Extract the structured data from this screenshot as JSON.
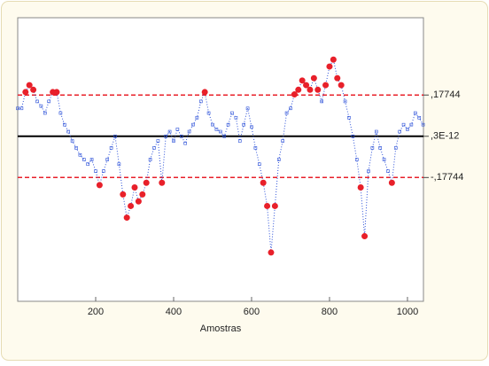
{
  "chart_data": {
    "type": "control",
    "x_label": "Amostras",
    "x": [
      0,
      10,
      20,
      30,
      40,
      50,
      60,
      70,
      80,
      90,
      100,
      110,
      120,
      130,
      140,
      150,
      160,
      170,
      180,
      190,
      200,
      210,
      220,
      230,
      240,
      250,
      260,
      270,
      280,
      290,
      300,
      310,
      320,
      330,
      340,
      350,
      360,
      370,
      380,
      390,
      400,
      410,
      420,
      430,
      440,
      450,
      460,
      470,
      480,
      490,
      500,
      510,
      520,
      530,
      540,
      550,
      560,
      570,
      580,
      590,
      600,
      610,
      620,
      630,
      640,
      650,
      660,
      670,
      680,
      690,
      700,
      710,
      720,
      730,
      740,
      750,
      760,
      770,
      780,
      790,
      800,
      810,
      820,
      830,
      840,
      850,
      860,
      870,
      880,
      890,
      900,
      910,
      920,
      930,
      940,
      950,
      960,
      970,
      980,
      990,
      1000,
      1010,
      1020,
      1030,
      1040
    ],
    "values": [
      0.12,
      0.12,
      0.19,
      0.22,
      0.2,
      0.15,
      0.13,
      0.1,
      0.15,
      0.19,
      0.19,
      0.1,
      0.05,
      0.02,
      -0.02,
      -0.05,
      -0.08,
      -0.1,
      -0.12,
      -0.1,
      -0.15,
      -0.21,
      -0.15,
      -0.1,
      -0.05,
      0,
      -0.12,
      -0.25,
      -0.35,
      -0.3,
      -0.22,
      -0.28,
      -0.25,
      -0.2,
      -0.1,
      -0.05,
      -0.02,
      -0.2,
      0,
      0.02,
      -0.02,
      0.03,
      0,
      -0.03,
      0.02,
      0.05,
      0.08,
      0.15,
      0.19,
      0.1,
      0.05,
      0.03,
      0.02,
      0,
      0.05,
      0.1,
      0.08,
      -0.02,
      0.05,
      0.12,
      0.04,
      -0.05,
      -0.12,
      -0.2,
      -0.3,
      -0.5,
      -0.3,
      -0.1,
      -0.02,
      0.1,
      0.12,
      0.18,
      0.2,
      0.24,
      0.22,
      0.2,
      0.25,
      0.2,
      0.15,
      0.22,
      0.3,
      0.33,
      0.25,
      0.22,
      0.15,
      0.08,
      0,
      -0.1,
      -0.22,
      -0.43,
      -0.15,
      -0.05,
      0.02,
      -0.05,
      -0.1,
      -0.15,
      -0.2,
      -0.05,
      0.02,
      0.05,
      0.03,
      0.05,
      0.1,
      0.08,
      0.05
    ],
    "color": "#2a4fd8",
    "out_color": "#e8202a",
    "reference_lines": [
      {
        "value": 0.17744,
        "label": ",17744",
        "color": "#e8202a",
        "style": "dashed"
      },
      {
        "value": 3e-12,
        "label": ",3E-12",
        "color": "#000000",
        "style": "solid"
      },
      {
        "value": -0.17744,
        "label": "-,17744",
        "color": "#e8202a",
        "style": "dashed"
      }
    ],
    "xlim": [
      0,
      1041
    ],
    "ylim": [
      -0.71,
      0.51
    ],
    "xticks": [
      200,
      400,
      600,
      800,
      1000
    ]
  }
}
